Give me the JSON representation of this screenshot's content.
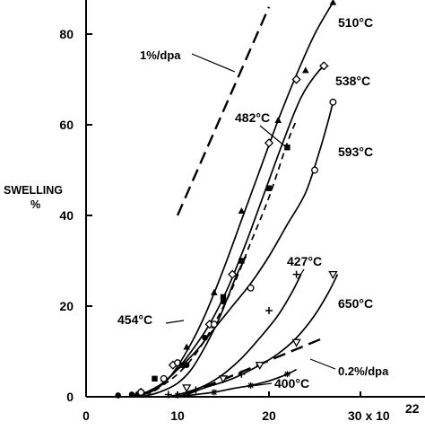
{
  "chart_data": {
    "type": "line",
    "ylabel_lines": [
      "SWELLING",
      "%"
    ],
    "xlabel": "",
    "x_ticks": [
      "0",
      "10",
      "20",
      "30 x 10"
    ],
    "x_tick_exponent": "22",
    "y_ticks": [
      "0",
      "20",
      "40",
      "60",
      "80"
    ],
    "xlim": [
      0,
      34
    ],
    "ylim": [
      0,
      86
    ],
    "grid": false,
    "legend": "none",
    "series": [
      {
        "name": "510°C",
        "marker": "filled-triangle",
        "line": "solid",
        "points": [
          [
            5.5,
            0.5
          ],
          [
            8.5,
            4
          ],
          [
            11,
            11
          ],
          [
            14,
            23
          ],
          [
            17,
            41
          ],
          [
            21,
            61
          ],
          [
            24,
            72
          ],
          [
            27,
            87
          ]
        ],
        "curve": [
          [
            5,
            0
          ],
          [
            7,
            1
          ],
          [
            9,
            4
          ],
          [
            11,
            10
          ],
          [
            13,
            18
          ],
          [
            15,
            28
          ],
          [
            17,
            39
          ],
          [
            19,
            50
          ],
          [
            21,
            61
          ],
          [
            23,
            71
          ],
          [
            25,
            80
          ],
          [
            27,
            87
          ]
        ]
      },
      {
        "name": "538°C",
        "marker": "open-diamond",
        "line": "solid",
        "points": [
          [
            6,
            1
          ],
          [
            9.5,
            7
          ],
          [
            13.5,
            16
          ],
          [
            16,
            27
          ],
          [
            20,
            56
          ],
          [
            23,
            70
          ],
          [
            26,
            73
          ]
        ],
        "curve": [
          [
            5.5,
            0
          ],
          [
            7.5,
            1.5
          ],
          [
            9.5,
            5
          ],
          [
            11.5,
            10
          ],
          [
            13.5,
            16
          ],
          [
            15.5,
            24
          ],
          [
            17.5,
            34
          ],
          [
            19.5,
            45
          ],
          [
            21.5,
            56
          ],
          [
            23.5,
            66
          ],
          [
            25.5,
            72
          ],
          [
            26.5,
            73
          ]
        ]
      },
      {
        "name": "593°C",
        "marker": "open-circle",
        "line": "solid",
        "points": [
          [
            6,
            1
          ],
          [
            8.5,
            4
          ],
          [
            10,
            7.5
          ],
          [
            14,
            16
          ],
          [
            18,
            24
          ],
          [
            25,
            50
          ],
          [
            27,
            65
          ]
        ],
        "curve": [
          [
            5.5,
            0
          ],
          [
            8,
            2.5
          ],
          [
            10,
            6
          ],
          [
            12,
            10
          ],
          [
            14,
            15
          ],
          [
            16,
            20
          ],
          [
            18,
            25
          ],
          [
            20,
            31
          ],
          [
            22,
            38
          ],
          [
            24,
            45
          ],
          [
            25.5,
            54
          ],
          [
            26.5,
            61
          ],
          [
            27,
            65
          ]
        ]
      },
      {
        "name": "482°C",
        "marker": "filled-square",
        "line": "dashed",
        "points": [
          [
            7.5,
            4
          ],
          [
            10.5,
            7
          ],
          [
            15,
            22
          ],
          [
            17,
            30
          ],
          [
            20,
            46
          ],
          [
            22,
            55
          ]
        ],
        "curve": [
          [
            6.5,
            0
          ],
          [
            8,
            2
          ],
          [
            10,
            5
          ],
          [
            12,
            9.5
          ],
          [
            14,
            16
          ],
          [
            16,
            24
          ],
          [
            18,
            34
          ],
          [
            20,
            44
          ],
          [
            22,
            56
          ],
          [
            23,
            61
          ]
        ]
      },
      {
        "name": "454°C",
        "marker": "filled-circle",
        "line": "solid",
        "points": [
          [
            3.5,
            0.3
          ],
          [
            5,
            0.5
          ],
          [
            11,
            7
          ],
          [
            13,
            13
          ],
          [
            15,
            21
          ]
        ],
        "curve": [
          [
            6,
            0
          ],
          [
            8,
            1
          ],
          [
            10,
            3
          ],
          [
            11.5,
            6
          ],
          [
            13,
            11
          ],
          [
            14.5,
            17
          ],
          [
            15.5,
            22
          ],
          [
            16.5,
            27
          ],
          [
            17.5,
            31
          ]
        ]
      },
      {
        "name": "427°C",
        "marker": "plus",
        "line": "solid",
        "points": [
          [
            9,
            0.5
          ],
          [
            12,
            1.5
          ],
          [
            17,
            5
          ],
          [
            20,
            19
          ],
          [
            23,
            27
          ]
        ],
        "curve": [
          [
            9,
            0
          ],
          [
            11,
            1
          ],
          [
            13,
            2.5
          ],
          [
            15,
            5
          ],
          [
            17,
            8.5
          ],
          [
            19,
            13
          ],
          [
            21,
            18
          ],
          [
            22.5,
            23
          ],
          [
            23.5,
            27
          ]
        ]
      },
      {
        "name": "650°C",
        "marker": "open-down-triangle",
        "line": "solid",
        "points": [
          [
            11,
            2
          ],
          [
            15,
            4
          ],
          [
            19,
            7
          ],
          [
            23,
            12
          ],
          [
            27,
            27
          ]
        ],
        "curve": [
          [
            10,
            0
          ],
          [
            13,
            2
          ],
          [
            16,
            4
          ],
          [
            19,
            7
          ],
          [
            21,
            9.5
          ],
          [
            23,
            13
          ],
          [
            25,
            18
          ],
          [
            26.5,
            23
          ],
          [
            27.5,
            27
          ]
        ]
      },
      {
        "name": "400°C",
        "marker": "star",
        "line": "solid",
        "points": [
          [
            10,
            0.3
          ],
          [
            14,
            1
          ],
          [
            18,
            2.5
          ],
          [
            22,
            5
          ]
        ],
        "curve": [
          [
            10,
            0
          ],
          [
            12,
            0.5
          ],
          [
            14,
            1
          ],
          [
            16,
            1.8
          ],
          [
            18,
            2.5
          ],
          [
            20,
            3.5
          ],
          [
            22,
            5
          ],
          [
            23,
            6
          ]
        ]
      }
    ],
    "reference_lines": [
      {
        "name": "1%/dpa",
        "line": "dashed",
        "from": [
          10,
          40
        ],
        "to": [
          20,
          86
        ]
      },
      {
        "name": "0.2%/dpa",
        "line": "dashed",
        "from": [
          11,
          0.5
        ],
        "to": [
          26,
          13
        ]
      }
    ]
  }
}
